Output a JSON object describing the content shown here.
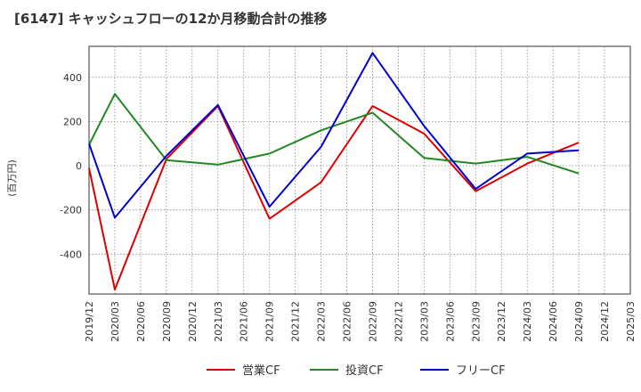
{
  "title": "[6147]  キャッシュフローの12か月移動合計の推移",
  "chart_data": {
    "type": "line",
    "title": "[6147]  キャッシュフローの12か月移動合計の推移",
    "ylabel": "(百万円)",
    "xlabel": "",
    "ylim": [
      -580,
      540
    ],
    "yticks": [
      -400,
      -200,
      0,
      200,
      400
    ],
    "ytick_labels": [
      "-400",
      "-200",
      "0",
      "200",
      "400"
    ],
    "x": [
      "2019/12",
      "2020/03",
      "2020/06",
      "2020/09",
      "2020/12",
      "2021/03",
      "2021/06",
      "2021/09",
      "2021/12",
      "2022/03",
      "2022/06",
      "2022/09",
      "2022/12",
      "2023/03",
      "2023/06",
      "2023/09",
      "2023/12",
      "2024/03",
      "2024/06",
      "2024/09",
      "2024/12",
      "2025/03"
    ],
    "series": [
      {
        "name": "営業CF",
        "color": "#dd0000",
        "points": [
          [
            0,
            -10
          ],
          [
            1,
            -560
          ],
          [
            3,
            30
          ],
          [
            5,
            270
          ],
          [
            7,
            -240
          ],
          [
            9,
            -75
          ],
          [
            11,
            270
          ],
          [
            13,
            145
          ],
          [
            15,
            -115
          ],
          [
            17,
            10
          ],
          [
            19,
            105
          ]
        ]
      },
      {
        "name": "投資CF",
        "color": "#228822",
        "points": [
          [
            0,
            95
          ],
          [
            1,
            325
          ],
          [
            3,
            25
          ],
          [
            5,
            5
          ],
          [
            7,
            55
          ],
          [
            9,
            160
          ],
          [
            11,
            240
          ],
          [
            13,
            35
          ],
          [
            15,
            10
          ],
          [
            17,
            40
          ],
          [
            19,
            -35
          ]
        ]
      },
      {
        "name": "フリーCF",
        "color": "#0000cc",
        "points": [
          [
            0,
            100
          ],
          [
            1,
            -235
          ],
          [
            3,
            45
          ],
          [
            5,
            275
          ],
          [
            7,
            -185
          ],
          [
            9,
            85
          ],
          [
            11,
            510
          ],
          [
            13,
            180
          ],
          [
            15,
            -105
          ],
          [
            17,
            55
          ],
          [
            19,
            70
          ]
        ]
      }
    ],
    "grid": true,
    "legend_position": "bottom"
  }
}
